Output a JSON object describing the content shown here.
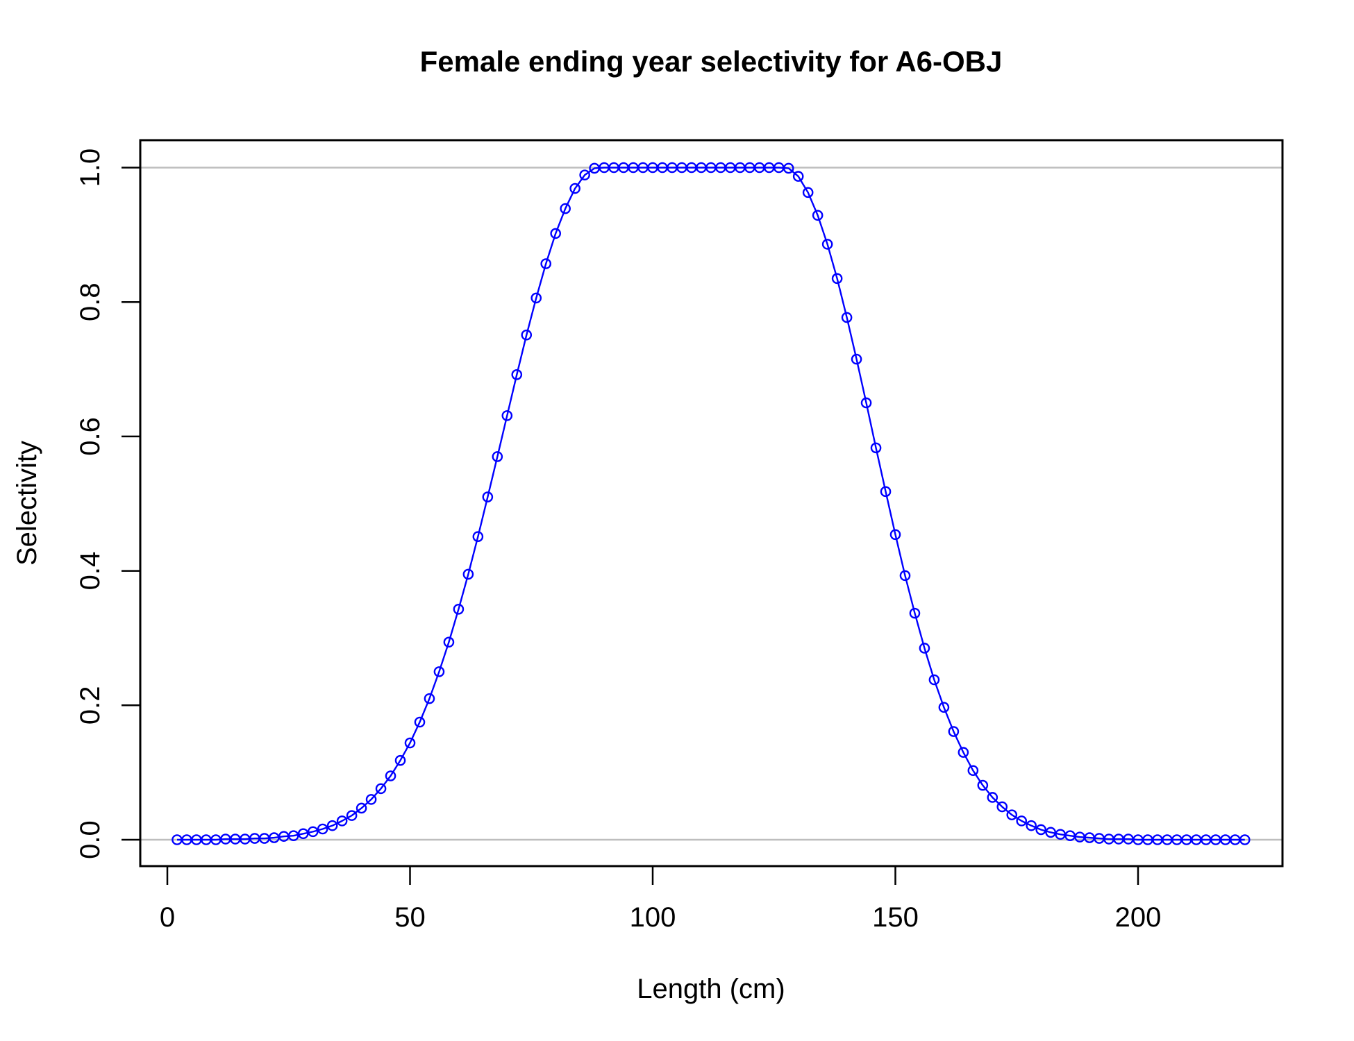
{
  "chart_data": {
    "type": "line",
    "title": "Female ending year selectivity for A6-OBJ",
    "xlabel": "Length (cm)",
    "ylabel": "Selectivity",
    "x_ticks": [
      "0",
      "50",
      "100",
      "150",
      "200"
    ],
    "y_ticks": [
      "0.0",
      "0.2",
      "0.4",
      "0.6",
      "0.8",
      "1.0"
    ],
    "xlim": [
      -7,
      231
    ],
    "ylim": [
      -0.04,
      1.04
    ],
    "grid": "horizontal-reference-lines",
    "grid_y_values": [
      0,
      1
    ],
    "legend": "none",
    "marker": "open-circle",
    "series": [
      {
        "name": "Female ending year selectivity for A6-OBJ",
        "x": [
          2,
          4,
          6,
          8,
          10,
          12,
          14,
          16,
          18,
          20,
          22,
          24,
          26,
          28,
          30,
          32,
          34,
          36,
          38,
          40,
          42,
          44,
          46,
          48,
          50,
          52,
          54,
          56,
          58,
          60,
          62,
          64,
          66,
          68,
          70,
          72,
          74,
          76,
          78,
          80,
          82,
          84,
          86,
          88,
          90,
          92,
          94,
          96,
          98,
          100,
          102,
          104,
          106,
          108,
          110,
          112,
          114,
          116,
          118,
          120,
          122,
          124,
          126,
          128,
          130,
          132,
          134,
          136,
          138,
          140,
          142,
          144,
          146,
          148,
          150,
          152,
          154,
          156,
          158,
          160,
          162,
          164,
          166,
          168,
          170,
          172,
          174,
          176,
          178,
          180,
          182,
          184,
          186,
          188,
          190,
          192,
          194,
          196,
          198,
          200,
          202,
          204,
          206,
          208,
          210,
          212,
          214,
          216,
          218,
          220,
          222
        ],
        "y": [
          0,
          0,
          0,
          0,
          0,
          0.001,
          0.001,
          0.001,
          0.002,
          0.002,
          0.003,
          0.005,
          0.006,
          0.009,
          0.012,
          0.016,
          0.021,
          0.028,
          0.036,
          0.047,
          0.06,
          0.076,
          0.095,
          0.118,
          0.144,
          0.175,
          0.21,
          0.25,
          0.294,
          0.343,
          0.395,
          0.451,
          0.51,
          0.57,
          0.631,
          0.692,
          0.751,
          0.806,
          0.857,
          0.902,
          0.939,
          0.969,
          0.989,
          0.999,
          1,
          1,
          1,
          1,
          1,
          1,
          1,
          1,
          1,
          1,
          1,
          1,
          1,
          1,
          1,
          1,
          1,
          1,
          1,
          0.999,
          0.987,
          0.963,
          0.929,
          0.886,
          0.835,
          0.777,
          0.715,
          0.65,
          0.583,
          0.518,
          0.454,
          0.393,
          0.337,
          0.285,
          0.238,
          0.197,
          0.161,
          0.13,
          0.103,
          0.081,
          0.063,
          0.049,
          0.037,
          0.028,
          0.021,
          0.015,
          0.011,
          0.008,
          0.006,
          0.004,
          0.003,
          0.002,
          0.001,
          0.001,
          0.001,
          0,
          0,
          0,
          0,
          0,
          0,
          0,
          0,
          0,
          0,
          0,
          0
        ]
      }
    ],
    "colors": {
      "line": "#0000ff",
      "marker": "#0000ff",
      "grid_line": "#bebebe",
      "axis": "#000000",
      "text": "#000000",
      "background": "#ffffff"
    }
  }
}
